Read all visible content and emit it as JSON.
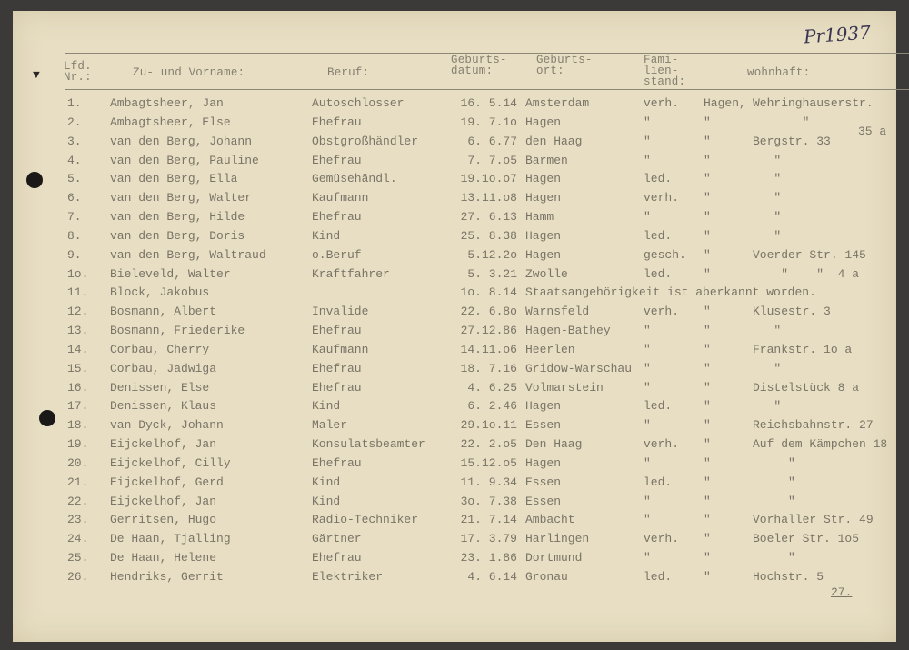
{
  "archive_mark": "Pr1937",
  "headers": {
    "nr": "Lfd.\nNr.:",
    "name": "Zu- und Vorname:",
    "beruf": "Beruf:",
    "datum": "Geburts-\ndatum:",
    "ort": "Geburts-\nort:",
    "fam": "Fami-\nlien-\nstand:",
    "wohnhaft": "wohnhaft:"
  },
  "rows": [
    {
      "nr": "1.",
      "name": "Ambagtsheer, Jan",
      "beruf": "Autoschlosser",
      "datum": "16. 5.14",
      "ort": "Amsterdam",
      "fam": "verh.",
      "stadt": "Hagen,",
      "str": "Wehringhauserstr."
    },
    {
      "nr": "2.",
      "name": "Ambagtsheer, Else",
      "beruf": "Ehefrau",
      "datum": "19. 7.1o",
      "ort": "Hagen",
      "fam": "\"",
      "stadt": "\"",
      "str": "       \""
    },
    {
      "nr": "3.",
      "name": "van den Berg, Johann",
      "beruf": "Obstgroßhändler",
      "datum": "6. 6.77",
      "ort": "den Haag",
      "fam": "\"",
      "stadt": "\"",
      "str": "Bergstr. 33"
    },
    {
      "nr": "4.",
      "name": "van den Berg, Pauline",
      "beruf": "Ehefrau",
      "datum": "7. 7.o5",
      "ort": "Barmen",
      "fam": "\"",
      "stadt": "\"",
      "str": "   \""
    },
    {
      "nr": "5.",
      "name": "van den Berg, Ella",
      "beruf": "Gemüsehändl.",
      "datum": "19.1o.o7",
      "ort": "Hagen",
      "fam": "led.",
      "stadt": "\"",
      "str": "   \""
    },
    {
      "nr": "6.",
      "name": "van den Berg, Walter",
      "beruf": "Kaufmann",
      "datum": "13.11.o8",
      "ort": "Hagen",
      "fam": "verh.",
      "stadt": "\"",
      "str": "   \""
    },
    {
      "nr": "7.",
      "name": "van den Berg, Hilde",
      "beruf": "Ehefrau",
      "datum": "27. 6.13",
      "ort": "Hamm",
      "fam": "\"",
      "stadt": "\"",
      "str": "   \""
    },
    {
      "nr": "8.",
      "name": "van den Berg, Doris",
      "beruf": "Kind",
      "datum": "25. 8.38",
      "ort": "Hagen",
      "fam": "led.",
      "stadt": "\"",
      "str": "   \""
    },
    {
      "nr": "9.",
      "name": "van den Berg, Waltraud",
      "beruf": "o.Beruf",
      "datum": "5.12.2o",
      "ort": "Hagen",
      "fam": "gesch.",
      "stadt": "\"",
      "str": "Voerder Str. 145"
    },
    {
      "nr": "1o.",
      "name": "Bieleveld, Walter",
      "beruf": "Kraftfahrer",
      "datum": "5. 3.21",
      "ort": "Zwolle",
      "fam": "led.",
      "stadt": "\"",
      "str": "    \"    \"  4 a"
    },
    {
      "nr": "11.",
      "name": "Block, Jakobus",
      "beruf": "",
      "datum": "1o. 8.14",
      "note": "Staatsangehörigkeit ist aberkannt worden."
    },
    {
      "nr": "12.",
      "name": "Bosmann, Albert",
      "beruf": "Invalide",
      "datum": "22. 6.8o",
      "ort": "Warnsfeld",
      "fam": "verh.",
      "stadt": "\"",
      "str": "Klusestr. 3"
    },
    {
      "nr": "13.",
      "name": "Bosmann, Friederike",
      "beruf": "Ehefrau",
      "datum": "27.12.86",
      "ort": "Hagen-Bathey",
      "fam": "\"",
      "stadt": "\"",
      "str": "   \""
    },
    {
      "nr": "14.",
      "name": "Corbau, Cherry",
      "beruf": "Kaufmann",
      "datum": "14.11.o6",
      "ort": "Heerlen",
      "fam": "\"",
      "stadt": "\"",
      "str": "Frankstr. 1o a"
    },
    {
      "nr": "15.",
      "name": "Corbau, Jadwiga",
      "beruf": "Ehefrau",
      "datum": "18. 7.16",
      "ort": "Gridow-Warschau",
      "fam": "\"",
      "stadt": "\"",
      "str": "   \""
    },
    {
      "nr": "16.",
      "name": "Denissen, Else",
      "beruf": "Ehefrau",
      "datum": "4. 6.25",
      "ort": "Volmarstein",
      "fam": "\"",
      "stadt": "\"",
      "str": "Distelstück 8 a"
    },
    {
      "nr": "17.",
      "name": "Denissen, Klaus",
      "beruf": "Kind",
      "datum": "6. 2.46",
      "ort": "Hagen",
      "fam": "led.",
      "stadt": "\"",
      "str": "   \""
    },
    {
      "nr": "18.",
      "name": "van Dyck, Johann",
      "beruf": "Maler",
      "datum": "29.1o.11",
      "ort": "Essen",
      "fam": "\"",
      "stadt": "\"",
      "str": "Reichsbahnstr. 27"
    },
    {
      "nr": "19.",
      "name": "Eijckelhof, Jan",
      "beruf": "Konsulatsbeamter",
      "datum": "22. 2.o5",
      "ort": "Den Haag",
      "fam": "verh.",
      "stadt": "\"",
      "str": "Auf dem Kämpchen 18"
    },
    {
      "nr": "20.",
      "name": "Eijckelhof, Cilly",
      "beruf": "Ehefrau",
      "datum": "15.12.o5",
      "ort": "Hagen",
      "fam": "\"",
      "stadt": "\"",
      "str": "     \""
    },
    {
      "nr": "21.",
      "name": "Eijckelhof, Gerd",
      "beruf": "Kind",
      "datum": "11. 9.34",
      "ort": "Essen",
      "fam": "led.",
      "stadt": "\"",
      "str": "     \""
    },
    {
      "nr": "22.",
      "name": "Eijckelhof, Jan",
      "beruf": "Kind",
      "datum": "3o. 7.38",
      "ort": "Essen",
      "fam": "\"",
      "stadt": "\"",
      "str": "     \""
    },
    {
      "nr": "23.",
      "name": "Gerritsen, Hugo",
      "beruf": "Radio-Techniker",
      "datum": "21. 7.14",
      "ort": "Ambacht",
      "fam": "\"",
      "stadt": "\"",
      "str": "Vorhaller Str. 49"
    },
    {
      "nr": "24.",
      "name": "De Haan, Tjalling",
      "beruf": "Gärtner",
      "datum": "17. 3.79",
      "ort": "Harlingen",
      "fam": "verh.",
      "stadt": "\"",
      "str": "Boeler Str. 1o5"
    },
    {
      "nr": "25.",
      "name": "De Haan, Helene",
      "beruf": "Ehefrau",
      "datum": "23. 1.86",
      "ort": "Dortmund",
      "fam": "\"",
      "stadt": "\"",
      "str": "     \""
    },
    {
      "nr": "26.",
      "name": "Hendriks, Gerrit",
      "beruf": "Elektriker",
      "datum": "4. 6.14",
      "ort": "Gronau",
      "fam": "led.",
      "stadt": "\"",
      "str": "Hochstr. 5"
    }
  ],
  "row2_extra": "35 a",
  "page_total": "27."
}
